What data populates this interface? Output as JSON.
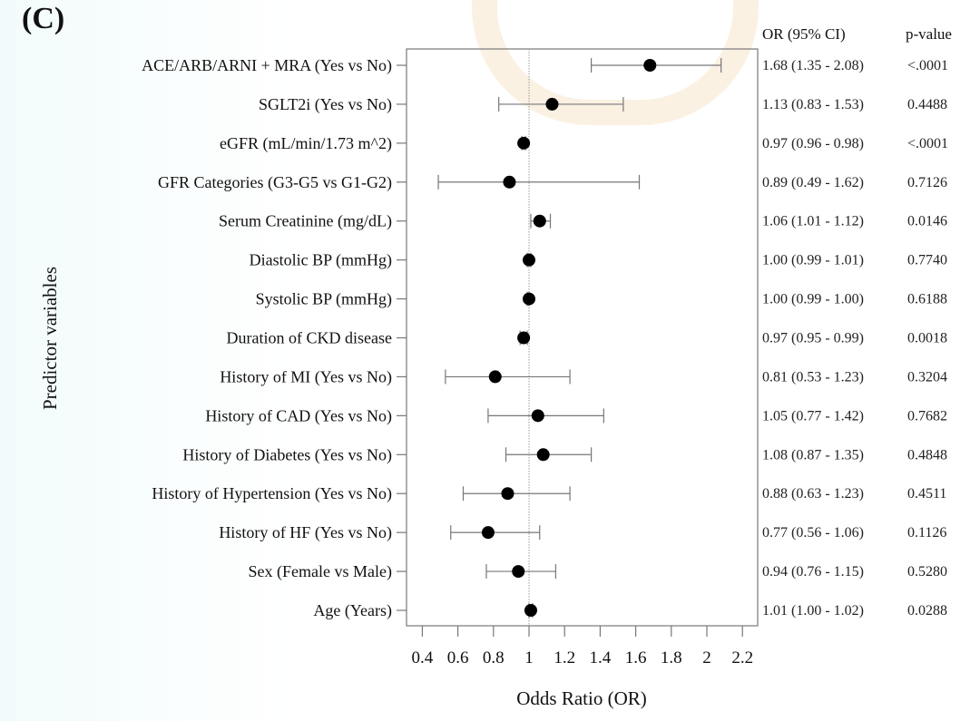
{
  "panel_label": "(C)",
  "chart_data": {
    "type": "forest",
    "xlabel": "Odds Ratio (OR)",
    "ylabel": "Predictor variables",
    "xlim": [
      0.3,
      2.3
    ],
    "xticks": [
      0.4,
      0.6,
      0.8,
      1,
      1.2,
      1.4,
      1.6,
      1.8,
      2,
      2.2
    ],
    "tick_labels": [
      "0.4",
      "0.6",
      "0.8",
      "1",
      "1.2",
      "1.4",
      "1.6",
      "1.8",
      "2",
      "2.2"
    ],
    "reference_line": 1,
    "grid": false,
    "columns": {
      "or_header": "OR (95% CI)",
      "p_header": "p-value"
    },
    "rows": [
      {
        "label": "ACE/ARB/ARNI + MRA (Yes vs No)",
        "or": 1.68,
        "lo": 1.35,
        "hi": 2.08,
        "or_text": "1.68 (1.35 - 2.08)",
        "p": "<.0001"
      },
      {
        "label": "SGLT2i (Yes vs No)",
        "or": 1.13,
        "lo": 0.83,
        "hi": 1.53,
        "or_text": "1.13 (0.83 - 1.53)",
        "p": "0.4488"
      },
      {
        "label": "eGFR (mL/min/1.73 m^2)",
        "or": 0.97,
        "lo": 0.96,
        "hi": 0.98,
        "or_text": "0.97 (0.96 - 0.98)",
        "p": "<.0001"
      },
      {
        "label": "GFR Categories (G3-G5 vs G1-G2)",
        "or": 0.89,
        "lo": 0.49,
        "hi": 1.62,
        "or_text": "0.89 (0.49 - 1.62)",
        "p": "0.7126"
      },
      {
        "label": "Serum Creatinine (mg/dL)",
        "or": 1.06,
        "lo": 1.01,
        "hi": 1.12,
        "or_text": "1.06 (1.01 - 1.12)",
        "p": "0.0146"
      },
      {
        "label": "Diastolic BP (mmHg)",
        "or": 1.0,
        "lo": 0.99,
        "hi": 1.01,
        "or_text": "1.00 (0.99 - 1.01)",
        "p": "0.7740"
      },
      {
        "label": "Systolic BP (mmHg)",
        "or": 1.0,
        "lo": 0.99,
        "hi": 1.0,
        "or_text": "1.00 (0.99 - 1.00)",
        "p": "0.6188"
      },
      {
        "label": "Duration of CKD disease",
        "or": 0.97,
        "lo": 0.95,
        "hi": 0.99,
        "or_text": "0.97 (0.95 - 0.99)",
        "p": "0.0018"
      },
      {
        "label": "History of MI (Yes vs No)",
        "or": 0.81,
        "lo": 0.53,
        "hi": 1.23,
        "or_text": "0.81 (0.53 - 1.23)",
        "p": "0.3204"
      },
      {
        "label": "History of CAD (Yes vs No)",
        "or": 1.05,
        "lo": 0.77,
        "hi": 1.42,
        "or_text": "1.05 (0.77 - 1.42)",
        "p": "0.7682"
      },
      {
        "label": "History of Diabetes (Yes vs No)",
        "or": 1.08,
        "lo": 0.87,
        "hi": 1.35,
        "or_text": "1.08 (0.87 - 1.35)",
        "p": "0.4848"
      },
      {
        "label": "History of Hypertension (Yes vs No)",
        "or": 0.88,
        "lo": 0.63,
        "hi": 1.23,
        "or_text": "0.88 (0.63 - 1.23)",
        "p": "0.4511"
      },
      {
        "label": "History of HF (Yes vs No)",
        "or": 0.77,
        "lo": 0.56,
        "hi": 1.06,
        "or_text": "0.77 (0.56 - 1.06)",
        "p": "0.1126"
      },
      {
        "label": "Sex (Female vs Male)",
        "or": 0.94,
        "lo": 0.76,
        "hi": 1.15,
        "or_text": "0.94 (0.76 - 1.15)",
        "p": "0.5280"
      },
      {
        "label": "Age (Years)",
        "or": 1.01,
        "lo": 1.0,
        "hi": 1.02,
        "or_text": "1.01 (1.00 - 1.02)",
        "p": "0.0288"
      }
    ]
  }
}
